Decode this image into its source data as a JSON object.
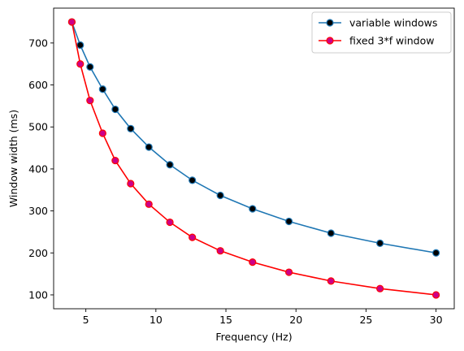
{
  "chart_data": {
    "type": "line",
    "title": "",
    "xlabel": "Frequency (Hz)",
    "ylabel": "Window width (ms)",
    "xlim": [
      2.7,
      31.3
    ],
    "ylim": [
      67,
      783
    ],
    "xticks": [
      5,
      10,
      15,
      20,
      25,
      30
    ],
    "yticks": [
      100,
      200,
      300,
      400,
      500,
      600,
      700
    ],
    "x": [
      4.0,
      4.6,
      5.3,
      6.2,
      7.1,
      8.2,
      9.5,
      11.0,
      12.6,
      14.6,
      16.9,
      19.5,
      22.5,
      26.0,
      30.0
    ],
    "series": [
      {
        "name": "variable windows",
        "color": "#1f77b4",
        "marker_face": "#000000",
        "values": [
          750,
          695,
          643,
          590,
          542,
          496,
          452,
          410,
          373,
          337,
          305,
          275,
          247,
          223,
          200
        ]
      },
      {
        "name": "fixed 3*f window",
        "color": "#ff0000",
        "marker_face": "#cc0088",
        "values": [
          750,
          650,
          563,
          485,
          420,
          365,
          316,
          273,
          237,
          205,
          178,
          154,
          133,
          115,
          100
        ]
      }
    ],
    "grid": false,
    "legend_position": "top-right"
  }
}
